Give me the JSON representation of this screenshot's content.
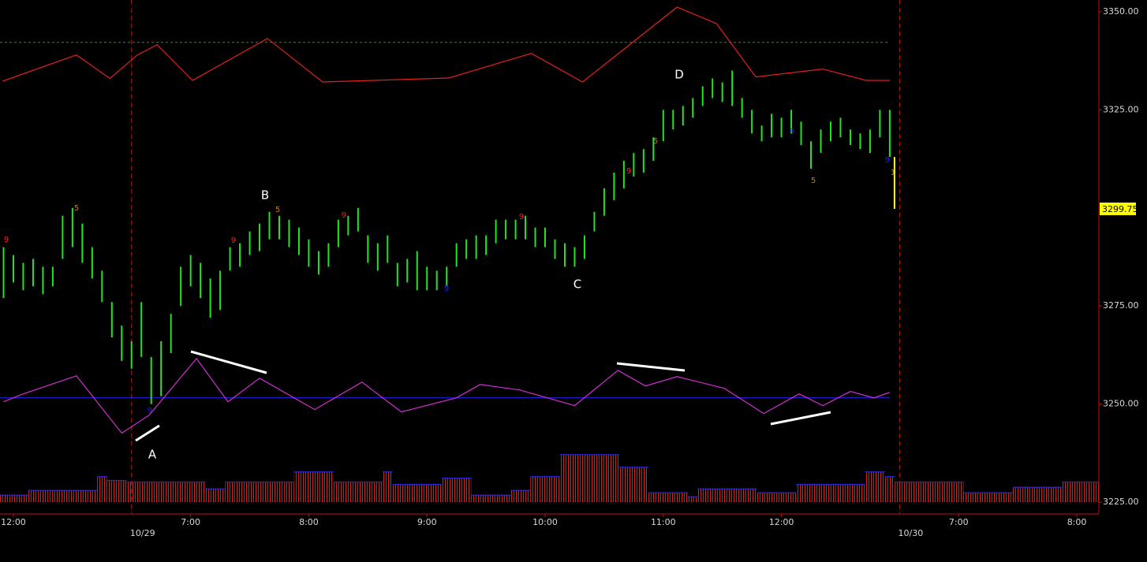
{
  "chart_data": {
    "type": "ohlc",
    "color": "#22e522",
    "x": [
      -1,
      0,
      1,
      2,
      3,
      4,
      5,
      6,
      7,
      8,
      9,
      10,
      11,
      12,
      13,
      14,
      15,
      16,
      17,
      18,
      19,
      20,
      21,
      22,
      23,
      24,
      25,
      26,
      27,
      28,
      29,
      30,
      31,
      32,
      33,
      34,
      35,
      36,
      37,
      38,
      39,
      40,
      41,
      42,
      43,
      44,
      45,
      46,
      47,
      48,
      49,
      50,
      51,
      52,
      53,
      54,
      55,
      56,
      57,
      58,
      59,
      60,
      61,
      62,
      63,
      64,
      65,
      66,
      67,
      68,
      69,
      70,
      71,
      72,
      73,
      74,
      75,
      76,
      77,
      78,
      79,
      80,
      81,
      82,
      83,
      84,
      85,
      86,
      87,
      88,
      89
    ],
    "high": [
      3290,
      3288,
      3286,
      3287,
      3285,
      3285,
      3298,
      3300,
      3296,
      3290,
      3284,
      3276,
      3270,
      3266,
      3276,
      3262,
      3266,
      3273,
      3285,
      3288,
      3286,
      3282,
      3284,
      3290,
      3291,
      3294,
      3296,
      3299,
      3298,
      3297,
      3295,
      3292,
      3289,
      3291,
      3297,
      3298,
      3300,
      3293,
      3291,
      3293,
      3286,
      3287,
      3289,
      3285,
      3284,
      3285,
      3291,
      3292,
      3293,
      3293,
      3297,
      3297,
      3297,
      3298,
      3295,
      3295,
      3292,
      3291,
      3290,
      3293,
      3299,
      3305,
      3309,
      3312,
      3314,
      3315,
      3318,
      3325,
      3325,
      3326,
      3328,
      3331,
      3333,
      3332,
      3335,
      3328,
      3325,
      3321,
      3324,
      3323,
      3325,
      3322,
      3317,
      3320,
      3322,
      3323,
      3320,
      3319,
      3320,
      3325,
      3325
    ],
    "low": [
      3277,
      3281,
      3279,
      3280,
      3278,
      3280,
      3287,
      3290,
      3286,
      3282,
      3276,
      3267,
      3261,
      3259,
      3262,
      3250,
      3252,
      3263,
      3275,
      3280,
      3277,
      3272,
      3274,
      3284,
      3285,
      3288,
      3289,
      3292,
      3292,
      3290,
      3288,
      3285,
      3283,
      3285,
      3290,
      3293,
      3294,
      3286,
      3284,
      3286,
      3280,
      3281,
      3279,
      3279,
      3279,
      3280,
      3285,
      3287,
      3287,
      3288,
      3291,
      3292,
      3292,
      3292,
      3290,
      3290,
      3287,
      3285,
      3285,
      3287,
      3294,
      3298,
      3302,
      3305,
      3308,
      3309,
      3312,
      3317,
      3320,
      3321,
      3323,
      3326,
      3328,
      3327,
      3326,
      3323,
      3319,
      3317,
      3318,
      3318,
      3319,
      3316,
      3310,
      3314,
      3317,
      3318,
      3316,
      3315,
      3314,
      3318,
      3313
    ],
    "last_price": 3299.75,
    "last_price_color": "#ffff00",
    "envelope": {
      "color": "#e02020",
      "x": [
        -1.1,
        6.4,
        9.8,
        12.6,
        14.6,
        18.2,
        25.8,
        31.4,
        44.2,
        52.6,
        57.8,
        67.4,
        71.4,
        75.4,
        82.2,
        86.6,
        89.0
      ],
      "values": [
        3332.3,
        3339.0,
        3333.0,
        3339.0,
        3341.6,
        3332.5,
        3343.2,
        3332.1,
        3333.1,
        3339.4,
        3332.1,
        3351.2,
        3347.0,
        3333.4,
        3335.4,
        3332.5,
        3332.5
      ]
    },
    "reference_lines": [
      {
        "value": 3342.2,
        "color": "#2e8b2e",
        "dashed": true
      },
      {
        "value": 3251.6,
        "color": "#2020e0",
        "dashed": false
      }
    ],
    "oscillator": {
      "color": "#d030d0",
      "x": [
        -1.0,
        1.0,
        6.4,
        11.0,
        13.8,
        18.6,
        21.8,
        25.0,
        30.6,
        35.4,
        39.4,
        45.0,
        47.4,
        51.4,
        57.0,
        61.4,
        64.2,
        67.4,
        72.2,
        76.2,
        79.8,
        82.2,
        85.0,
        87.4,
        89.0
      ],
      "values": [
        3250.6,
        3252.6,
        3257.2,
        3242.6,
        3247.2,
        3261.6,
        3250.6,
        3256.6,
        3248.6,
        3255.6,
        3248.0,
        3251.6,
        3255.0,
        3253.6,
        3249.6,
        3258.6,
        3254.6,
        3257.0,
        3254.0,
        3247.6,
        3252.6,
        3249.6,
        3253.2,
        3251.6,
        3253.0
      ]
    },
    "volume": {
      "color": "#d02020",
      "edge_color": "#3030ff",
      "x": [
        -1,
        0,
        1,
        2,
        3,
        4,
        5,
        6,
        7,
        8,
        9,
        10,
        11,
        12,
        13,
        14,
        15,
        16,
        17,
        18,
        19,
        20,
        21,
        22,
        23,
        24,
        25,
        26,
        27,
        28,
        29,
        30,
        31,
        32,
        33,
        34,
        35,
        36,
        37,
        38,
        39,
        40,
        41,
        42,
        43,
        44,
        45,
        46,
        47,
        48,
        49,
        50,
        51,
        52,
        53,
        54,
        55,
        56,
        57,
        58,
        59,
        60,
        61,
        62,
        63,
        64,
        65,
        66,
        67,
        68,
        69,
        70,
        71,
        72,
        73,
        74,
        75,
        76,
        77,
        78,
        79,
        80,
        81,
        82,
        83,
        84,
        85,
        86,
        87,
        88,
        89,
        90,
        91,
        92,
        93,
        94,
        95,
        96,
        97,
        98,
        99,
        100,
        101,
        102,
        103,
        104,
        105,
        106,
        107,
        108,
        109,
        110
      ],
      "values": [
        3226.8,
        3226.8,
        3226.8,
        3228,
        3228,
        3228,
        3228,
        3228,
        3228,
        3228,
        3231.5,
        3230.5,
        3230.5,
        3230.1,
        3230.1,
        3230.1,
        3230.1,
        3230.1,
        3230.1,
        3230.1,
        3230.1,
        3228.4,
        3228.4,
        3230.1,
        3230.1,
        3230.1,
        3230.1,
        3230.1,
        3230.1,
        3230.1,
        3232.7,
        3232.7,
        3232.7,
        3232.7,
        3230.1,
        3230.1,
        3230.1,
        3230.1,
        3230.1,
        3232.7,
        3229.5,
        3229.5,
        3229.5,
        3229.5,
        3229.5,
        3231.1,
        3231.1,
        3231.1,
        3226.8,
        3226.8,
        3226.8,
        3226.8,
        3228,
        3228,
        3231.5,
        3231.5,
        3231.5,
        3237.1,
        3237.1,
        3237.1,
        3237.1,
        3237.1,
        3237.1,
        3233.9,
        3233.9,
        3233.9,
        3227.4,
        3227.4,
        3227.4,
        3227.4,
        3226.4,
        3228.4,
        3228.4,
        3228.4,
        3228.4,
        3228.4,
        3228.4,
        3227.4,
        3227.4,
        3227.4,
        3227.4,
        3229.5,
        3229.5,
        3229.5,
        3229.5,
        3229.5,
        3229.5,
        3229.5,
        3232.7,
        3232.7,
        3231.5,
        3230.1,
        3230.1,
        3230.1,
        3230.1,
        3230.1,
        3230.1,
        3230.1,
        3227.4,
        3227.4,
        3227.4,
        3227.4,
        3227.4,
        3228.8,
        3228.8,
        3228.8,
        3228.8,
        3228.8,
        3230.1,
        3230.1,
        3230.1,
        3230.1
      ]
    },
    "setup_counts": [
      {
        "label": 9,
        "color": "#ff2020"
      },
      {
        "label": 5,
        "color": "#c08020"
      },
      {
        "label": 9,
        "color": "#2020ff"
      },
      {
        "label": 9,
        "color": "#ff2020"
      },
      {
        "label": 5,
        "color": "#c08020"
      },
      {
        "label": 9,
        "color": "#ff2020"
      },
      {
        "label": 9,
        "color": "#2020ff"
      },
      {
        "label": 9,
        "color": "#ff2020"
      },
      {
        "label": 9,
        "color": "#ff2020"
      },
      {
        "label": 5,
        "color": "#c08020"
      },
      {
        "label": 9,
        "color": "#2020ff"
      },
      {
        "label": 5,
        "color": "#c08020"
      },
      {
        "label": 9,
        "color": "#2020ff"
      },
      {
        "label": 1,
        "color": "#c08020"
      }
    ],
    "annotations": [
      "A",
      "B",
      "C",
      "D"
    ],
    "xlim": [
      -1.36,
      110.24
    ],
    "ylim": [
      3222,
      3353
    ],
    "xticks": [
      {
        "value": 0,
        "label": "12:00"
      },
      {
        "value": 18,
        "label": "7:00"
      },
      {
        "value": 30,
        "label": "8:00"
      },
      {
        "value": 42,
        "label": "9:00"
      },
      {
        "value": 54,
        "label": "10:00"
      },
      {
        "value": 66,
        "label": "11:00"
      },
      {
        "value": 78,
        "label": "12:00"
      },
      {
        "value": 96,
        "label": "7:00"
      },
      {
        "value": 108,
        "label": "8:00"
      }
    ],
    "date_ticks": [
      {
        "value": 12,
        "label": "10/29"
      },
      {
        "value": 90,
        "label": "10/30"
      }
    ],
    "yticks": [
      {
        "value": 3225,
        "label": "3225.00"
      },
      {
        "value": 3250,
        "label": "3250.00"
      },
      {
        "value": 3275,
        "label": "3275.00"
      },
      {
        "value": 3325,
        "label": "3325.00"
      },
      {
        "value": 3350,
        "label": "3350.00"
      }
    ]
  }
}
